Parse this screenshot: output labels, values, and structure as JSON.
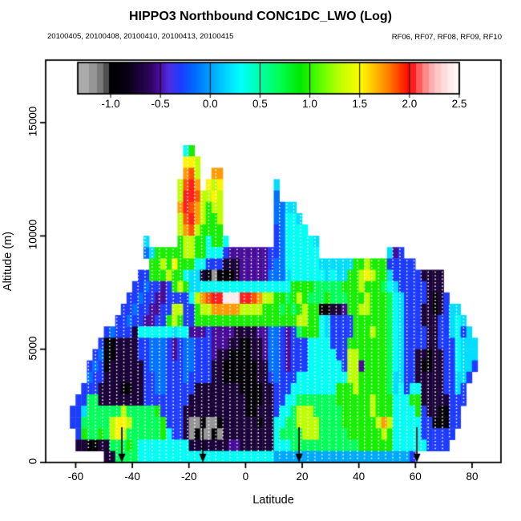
{
  "chart_data": {
    "type": "heatmap",
    "title": "HIPPO3 Northbound CONC1DC_LWO (Log)",
    "subtitle_dates": "20100405, 20100408, 20100410, 20100413, 20100415",
    "subtitle_flights": "RF06, RF07, RF08, RF09, RF10",
    "xlabel": "Latitude",
    "ylabel": "Altitude (m)",
    "x_range": [
      -70.6,
      90.2
    ],
    "y_range": [
      0,
      17760
    ],
    "x_ticks": [
      -60,
      -40,
      -20,
      0,
      20,
      40,
      60,
      80
    ],
    "x_tick_labels": [
      "-60",
      "-40",
      "-20",
      "0",
      "20",
      "40",
      "60",
      "80"
    ],
    "y_ticks": [
      0,
      5000,
      10000,
      15000
    ],
    "y_tick_labels": [
      "0",
      "5000",
      "10000",
      "15000"
    ],
    "colorbar": {
      "value_range": [
        -1.33,
        2.5
      ],
      "ticks": [
        -1.0,
        -0.5,
        0.0,
        0.5,
        1.0,
        1.5,
        2.0,
        2.5
      ],
      "tick_labels": [
        "-1.0",
        "-0.5",
        "0.0",
        "0.5",
        "1.0",
        "1.5",
        "2.0",
        "2.5"
      ],
      "stops": [
        [
          -1.02,
          0,
          0,
          0
        ],
        [
          -0.85,
          8,
          0,
          16
        ],
        [
          -0.6,
          45,
          5,
          95
        ],
        [
          -0.5,
          78,
          15,
          168
        ],
        [
          -0.42,
          78,
          45,
          225
        ],
        [
          -0.3,
          30,
          60,
          255
        ],
        [
          -0.15,
          0,
          110,
          255
        ],
        [
          0,
          0,
          162,
          255
        ],
        [
          0.15,
          0,
          212,
          255
        ],
        [
          0.3,
          0,
          255,
          252
        ],
        [
          0.5,
          0,
          255,
          168
        ],
        [
          0.7,
          0,
          255,
          80
        ],
        [
          0.9,
          0,
          232,
          0
        ],
        [
          1.1,
          92,
          255,
          0
        ],
        [
          1.3,
          190,
          255,
          0
        ],
        [
          1.5,
          255,
          252,
          0
        ],
        [
          1.65,
          255,
          188,
          0
        ],
        [
          1.8,
          255,
          118,
          0
        ],
        [
          1.95,
          255,
          30,
          0
        ],
        [
          2,
          255,
          0,
          0
        ]
      ],
      "pink_steps": [
        "#ff1f1f",
        "#ff5a5a",
        "#ff8a8a",
        "#ffadad",
        "#ffc8c8",
        "#ffdbdb",
        "#ffebeb",
        "#fff8f8"
      ],
      "gray_steps": [
        [
          -1.33,
          "#ababab"
        ],
        [
          -1.22,
          "#969696"
        ],
        [
          -1.14,
          "#7a7a7a"
        ],
        [
          -1.08,
          "#505050"
        ]
      ]
    },
    "grid": {
      "lat_start": -62,
      "lat_step": 2,
      "alt_top": 14000,
      "alt_step": 500,
      "value_map": {
        "g": -1.15,
        "k": -0.95,
        "p": -0.72,
        "P": -0.52,
        "b": -0.3,
        "B": -0.14,
        "s": 0.02,
        "c": 0.18,
        "C": 0.32,
        "G": 0.68,
        "e": 0.95,
        "y": 1.3,
        "Y": 1.52,
        "o": 1.72,
        "O": 1.86,
        "r": 2.0,
        "w": 2.4
      },
      "rows": [
        "....................Ce..................................................",
        "....................YYy.................................................",
        "....................oOy..oo.............................................",
        "...................yOro.YyY.........c...................................",
        "...................yrrOyyYy.........B...................................",
        "...................orOoyeyy.........BBcc................................",
        "...................yOroyeey.........BBCCc...............................",
        "...................yoOyeeee.........bBCCCC..............................",
        ".............c.....eyyeeCeeC........bBCCCCCc............................",
        ".............BceeeeeyyeeCCCbPPPPPPPbbBCCCCCC............cPb.............",
        "..............eeyeYeeeCCbbbpppPPPPPbBBCCCCCCcccccceeyeeebbbbb...........",
        "............bbeeeyeeCccpkgkkkpPPPPPBBBcCCCCCCcCcceeyYyeecbbbbbpppp......",
        "...........bbBbbPbeyeccCCCCCCCCCCCCCCCCeeeeGGGGGeeeyeeeGCcbbbbbppp......",
        "..........bbBbbPPbbbbCyoOrrwwwrrOoyyeeGeyeGGGeGGGeeeyeeeGCcbbbbpkpb.....",
        ".........bbBbbPPbbyybbeyyoooooyyyyeeeGeGeyeekkppPeeyyeeeGCcbbbppkpbcc...",
        "........bbBbbPPbbeyebbeeeeeeeeeeeeeeeeeeyyeeCcbbbbeeeeeeGCcbbbpppbbcCc..",
        "......bBbbbpCCCCCCcCCPPPbPPPPppppPPBBbPbGeeeCcbbbbeeeyeeGCcbbbbppbbcCbc.",
        ".....bkkppppbbBBBbPbBBbbbPPPppkkppPBBbPbbbCCCCbbbeeeeeeeGCcbbbbppbbbCccc",
        "....bBkkppppbbBBBbPbBBbbbPppkkkkppPBBbPbbbCCCCCbbyyeeeeeGCcbbppkppbbCccc",
        "...bBbkppppppbBBBbbbBBbbbppkkkkkkppBBbPbbbCCCCCCbyyPeeeeGCcbbpkkppbbCccb",
        "...BbbpppppppbbBBbbbBbbbbppkkkkkkppbBbbbCCCCCCCCCyyeeeeeGccbbpppppbbccb.",
        "..bbbppppkkppbbBBbbbbbppppppppkkkkppbbbCCCCCCCCeeeyeeeeeGcCbCCppppbbcb..",
        ".bbGGppppppppbbbbbbbbppppppppppkkkppbbCCGGGGGGGeeeeeeyeeeCCCeepppppbbb..",
        "bbcGGGGGGyGGGGGebbbbpppppppppppkkpppbCCGyyyGGGGGeeeeeyeeeCCCCebppkkbb...",
        "bbGGGGGyYYyGGGGGebbbpggkggkppppppkppCCGGyyyyGGGGeeeeeeyoyCCCCCbbkkkbb...",
        ".beGGeGyYyGGGGGGeCbbpgkggkgpppppppppCGGGGyyyGGGGGeeeeeeyeCCCCCbbbbbb....",
        ".ppkkppGGGeGCCCCCCCCCpppppppPPppppppCCCGGGGGGGGGGGGeeeeeeCCCCCCbbbb.....",
        "......ppGGGGCCCCCCCCCCCCCCCCCCCCCCCCssssssssssssssssssssssssb..........."
      ]
    },
    "flight_tracks_lat": [
      -55.5,
      -53,
      -50.5,
      -48,
      -45.5,
      -43,
      -40.5,
      -38,
      -35.5,
      -33,
      -30.5,
      -28,
      -25.5,
      -23,
      -20.5,
      -18,
      -15.5,
      -13,
      -10.5,
      -8,
      -5.5,
      -3,
      -0.5,
      2,
      4.5,
      7,
      9.5,
      12,
      14.5,
      17,
      19.5,
      22,
      24.5,
      27,
      29.5,
      32,
      34.5,
      37,
      39.5,
      42,
      44.5,
      47,
      49.5,
      52,
      54.5,
      57,
      59.5,
      62,
      64.5,
      67,
      69.5,
      72,
      74.5,
      77
    ],
    "arrow_lats": [
      -43.7,
      -15.1,
      18.9,
      60.5
    ]
  }
}
